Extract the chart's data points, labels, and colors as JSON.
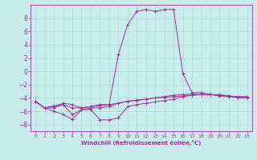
{
  "xlabel": "Windchill (Refroidissement éolien,°C)",
  "background_color": "#c8ecec",
  "grid_color": "#b0d8d8",
  "line_color": "#993399",
  "xlim": [
    -0.5,
    23.5
  ],
  "ylim": [
    -9,
    10
  ],
  "xticks": [
    0,
    1,
    2,
    3,
    4,
    5,
    6,
    7,
    8,
    9,
    10,
    11,
    12,
    13,
    14,
    15,
    16,
    17,
    18,
    19,
    20,
    21,
    22,
    23
  ],
  "yticks": [
    -8,
    -6,
    -4,
    -2,
    0,
    2,
    4,
    6,
    8
  ],
  "hours": [
    0,
    1,
    2,
    3,
    4,
    5,
    6,
    7,
    8,
    9,
    10,
    11,
    12,
    13,
    14,
    15,
    16,
    17,
    18,
    19,
    20,
    21,
    22,
    23
  ],
  "line1": [
    -4.5,
    -5.5,
    -5.5,
    -5.0,
    -5.5,
    -5.5,
    -5.3,
    -5.0,
    -5.0,
    -4.8,
    -4.5,
    -4.3,
    -4.2,
    -4.0,
    -3.9,
    -3.8,
    -3.7,
    -3.6,
    -3.5,
    -3.5,
    -3.6,
    -3.7,
    -3.8,
    -3.8
  ],
  "line2": [
    -4.5,
    -5.5,
    -6.0,
    -6.5,
    -7.2,
    -5.8,
    -5.7,
    -7.3,
    -7.3,
    -7.0,
    -5.3,
    -5.0,
    -4.8,
    -4.6,
    -4.4,
    -4.2,
    -3.8,
    -3.6,
    -3.5,
    -3.5,
    -3.6,
    -3.7,
    -3.9,
    -4.0
  ],
  "line3": [
    -4.5,
    -5.5,
    -5.2,
    -5.0,
    -6.5,
    -5.8,
    -5.5,
    -5.5,
    -5.3,
    -4.8,
    -4.5,
    -4.4,
    -4.2,
    -4.0,
    -3.8,
    -3.6,
    -3.5,
    -3.4,
    -3.5,
    -3.5,
    -3.7,
    -3.8,
    -3.9,
    -4.0
  ],
  "line_main": [
    -4.5,
    -5.5,
    -5.3,
    -4.8,
    -5.0,
    -5.5,
    -5.3,
    -5.2,
    -5.0,
    2.5,
    7.0,
    9.0,
    9.3,
    9.0,
    9.3,
    9.3,
    -0.3,
    -3.2,
    -3.2,
    -3.5,
    -3.5,
    -3.7,
    -3.9,
    -4.0
  ]
}
